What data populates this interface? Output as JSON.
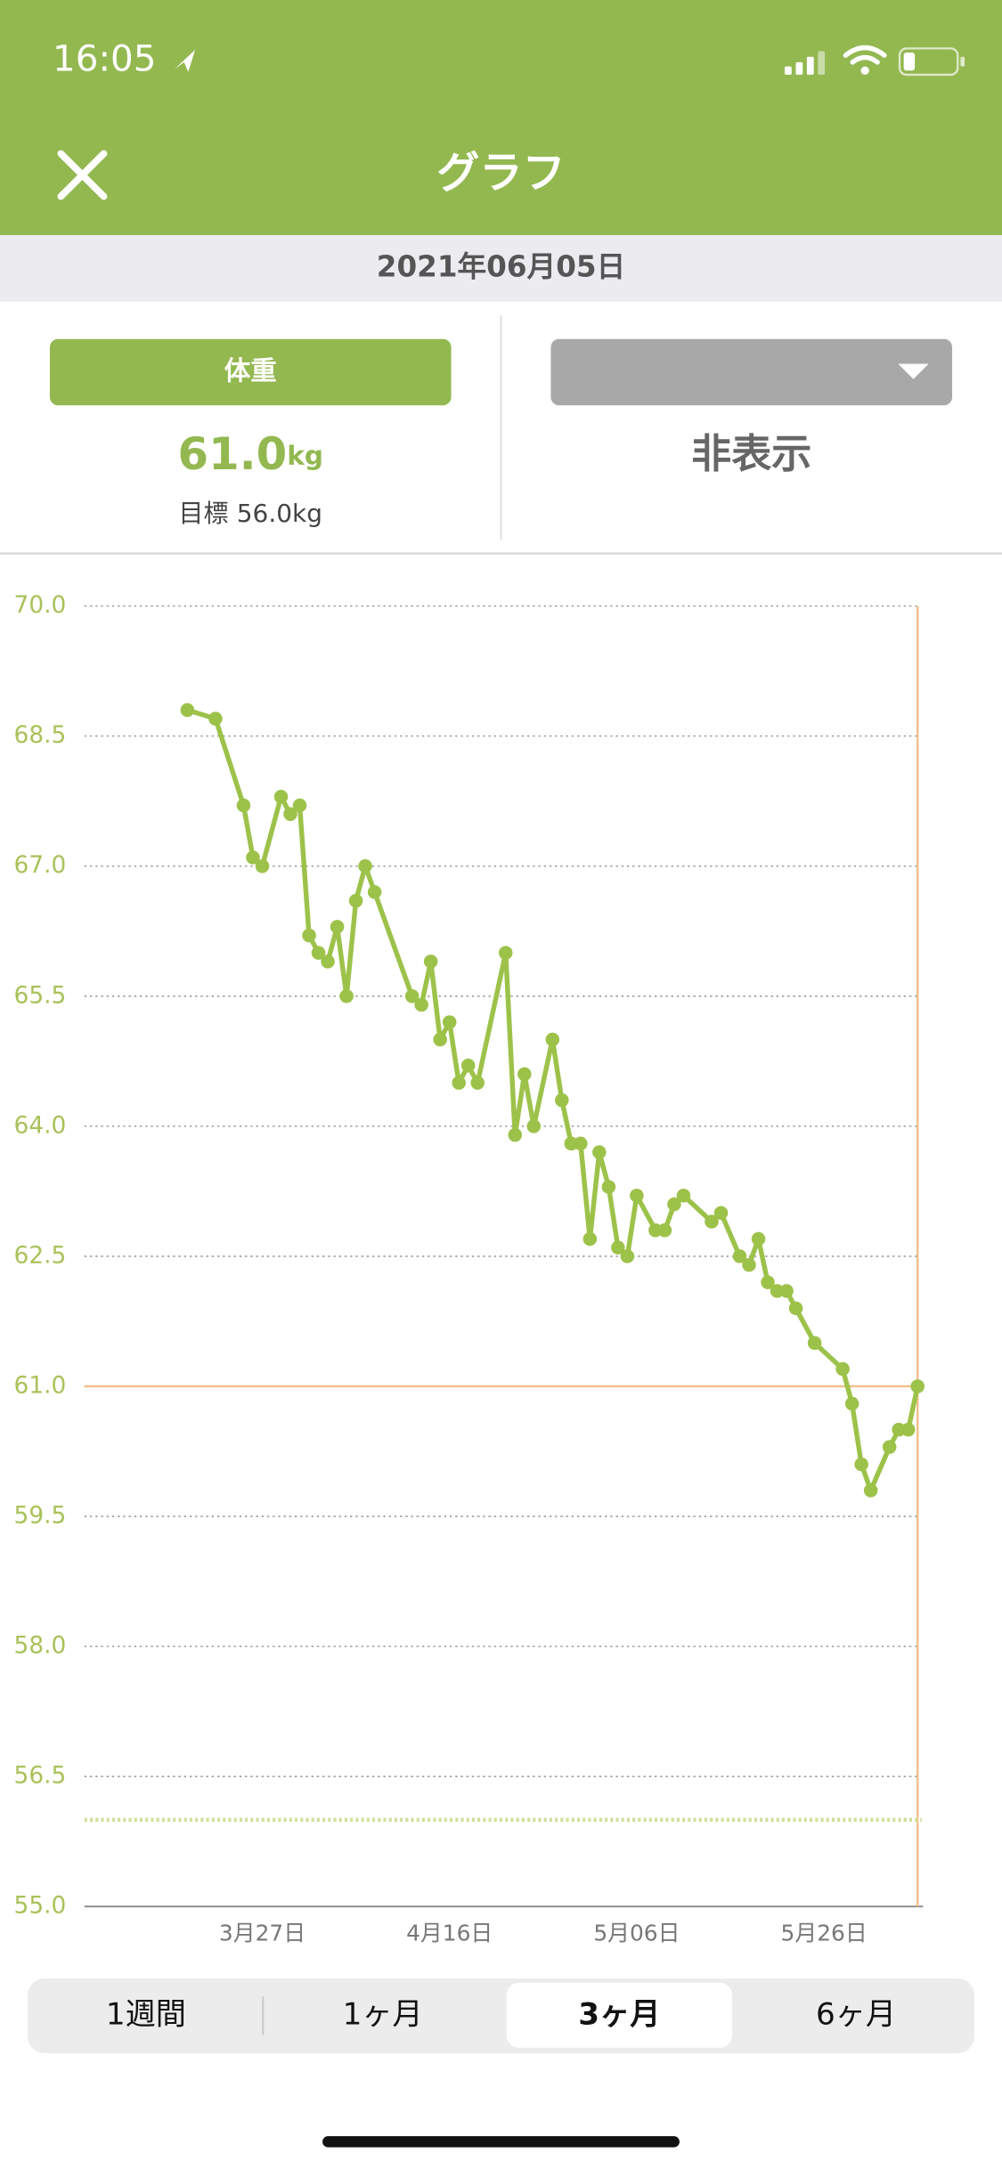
{
  "status_bar": {
    "time": "16:05"
  },
  "header": {
    "title": "グラフ"
  },
  "date": "2021年06月05日",
  "left_panel": {
    "label": "体重",
    "current": {
      "value": 61,
      "label": "61.0"
    },
    "unit": "kg",
    "goal_prefix": "目標",
    "goal": {
      "value": 56,
      "label": "56.0"
    },
    "goal_unit": "kg"
  },
  "right_panel": {
    "status": "非表示"
  },
  "tabs": {
    "items": [
      "1週間",
      "1ヶ月",
      "3ヶ月",
      "6ヶ月"
    ],
    "selected": 2
  },
  "chart_data": {
    "type": "line",
    "x": [
      "3月19日",
      "3月22日",
      "3月25日",
      "3月26日",
      "3月27日",
      "3月29日",
      "3月30日",
      "3月31日",
      "4月1日",
      "4月2日",
      "4月3日",
      "4月4日",
      "4月5日",
      "4月6日",
      "4月7日",
      "4月8日",
      "4月12日",
      "4月13日",
      "4月14日",
      "4月15日",
      "4月16日",
      "4月17日",
      "4月18日",
      "4月19日",
      "4月22日",
      "4月23日",
      "4月24日",
      "4月25日",
      "4月27日",
      "4月28日",
      "4月29日",
      "4月30日",
      "5月1日",
      "5月2日",
      "5月3日",
      "5月4日",
      "5月5日",
      "5月6日",
      "5月8日",
      "5月9日",
      "5月10日",
      "5月11日",
      "5月14日",
      "5月15日",
      "5月17日",
      "5月18日",
      "5月19日",
      "5月20日",
      "5月21日",
      "5月22日",
      "5月23日",
      "5月25日",
      "5月28日",
      "5月29日",
      "5月30日",
      "5月31日",
      "6月2日",
      "6月3日",
      "6月4日",
      "6月5日"
    ],
    "series": [
      {
        "name": "体重",
        "color": "#9dc24a",
        "values": [
          68.8,
          68.7,
          67.7,
          67.1,
          67.0,
          67.8,
          67.6,
          67.7,
          66.2,
          66.0,
          65.9,
          66.3,
          65.5,
          66.6,
          67.0,
          66.7,
          65.5,
          65.4,
          65.9,
          65.0,
          65.2,
          64.5,
          64.7,
          64.5,
          66.0,
          63.9,
          64.6,
          64.0,
          65.0,
          64.3,
          63.8,
          63.8,
          62.7,
          63.7,
          63.3,
          62.6,
          62.5,
          63.2,
          62.8,
          62.8,
          63.1,
          63.2,
          62.9,
          63.0,
          62.5,
          62.4,
          62.7,
          62.2,
          62.1,
          62.1,
          61.9,
          61.5,
          61.2,
          60.8,
          60.1,
          59.8,
          60.3,
          60.5,
          60.5,
          61.0
        ]
      }
    ],
    "xlim": [
      "3月8日",
      "6月5日"
    ],
    "xticks": [
      "3月27日",
      "4月16日",
      "5月06日",
      "5月26日"
    ],
    "ylim": [
      55,
      70
    ],
    "yticks": [
      {
        "value": 55,
        "label": "55.0"
      },
      56.5,
      {
        "value": 58,
        "label": "58.0"
      },
      59.5,
      {
        "value": 61,
        "label": "61.0"
      },
      62.5,
      {
        "value": 64,
        "label": "64.0"
      },
      65.5,
      {
        "value": 67,
        "label": "67.0"
      },
      68.5,
      {
        "value": 70,
        "label": "70.0"
      }
    ],
    "grid": true,
    "current_line_color": "#f2be88",
    "goal_line_color": "#cfe19a"
  }
}
